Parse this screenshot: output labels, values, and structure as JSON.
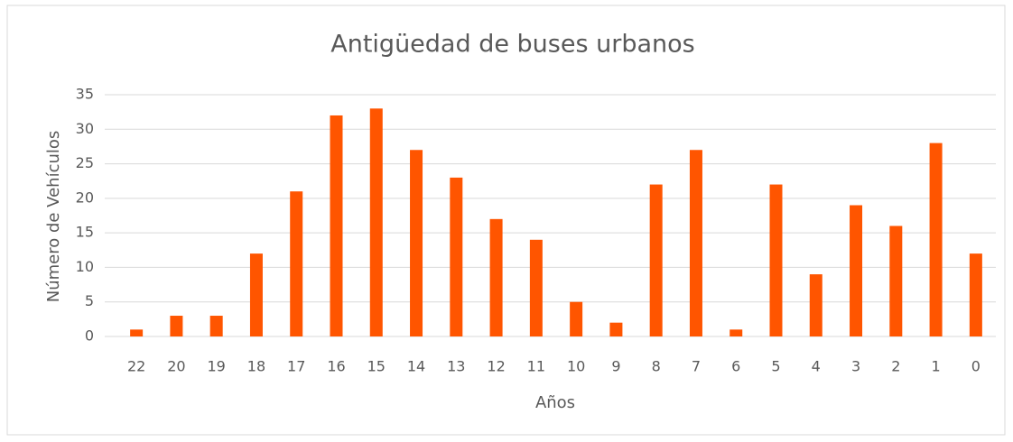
{
  "chart_data": {
    "type": "bar",
    "title": "Antigüedad de buses urbanos",
    "x_label": "Años",
    "y_label": "Número de Vehículos",
    "categories": [
      "22",
      "20",
      "19",
      "18",
      "17",
      "16",
      "15",
      "14",
      "13",
      "12",
      "11",
      "10",
      "9",
      "8",
      "7",
      "6",
      "5",
      "4",
      "3",
      "2",
      "1",
      "0"
    ],
    "values": [
      1,
      3,
      3,
      12,
      21,
      32,
      33,
      27,
      23,
      17,
      14,
      5,
      2,
      22,
      27,
      1,
      22,
      9,
      19,
      16,
      28,
      12
    ],
    "color": "#ff5500",
    "ylim": [
      0,
      35
    ],
    "yticks": [
      0,
      5,
      10,
      15,
      20,
      25,
      30,
      35
    ],
    "grid": true
  }
}
